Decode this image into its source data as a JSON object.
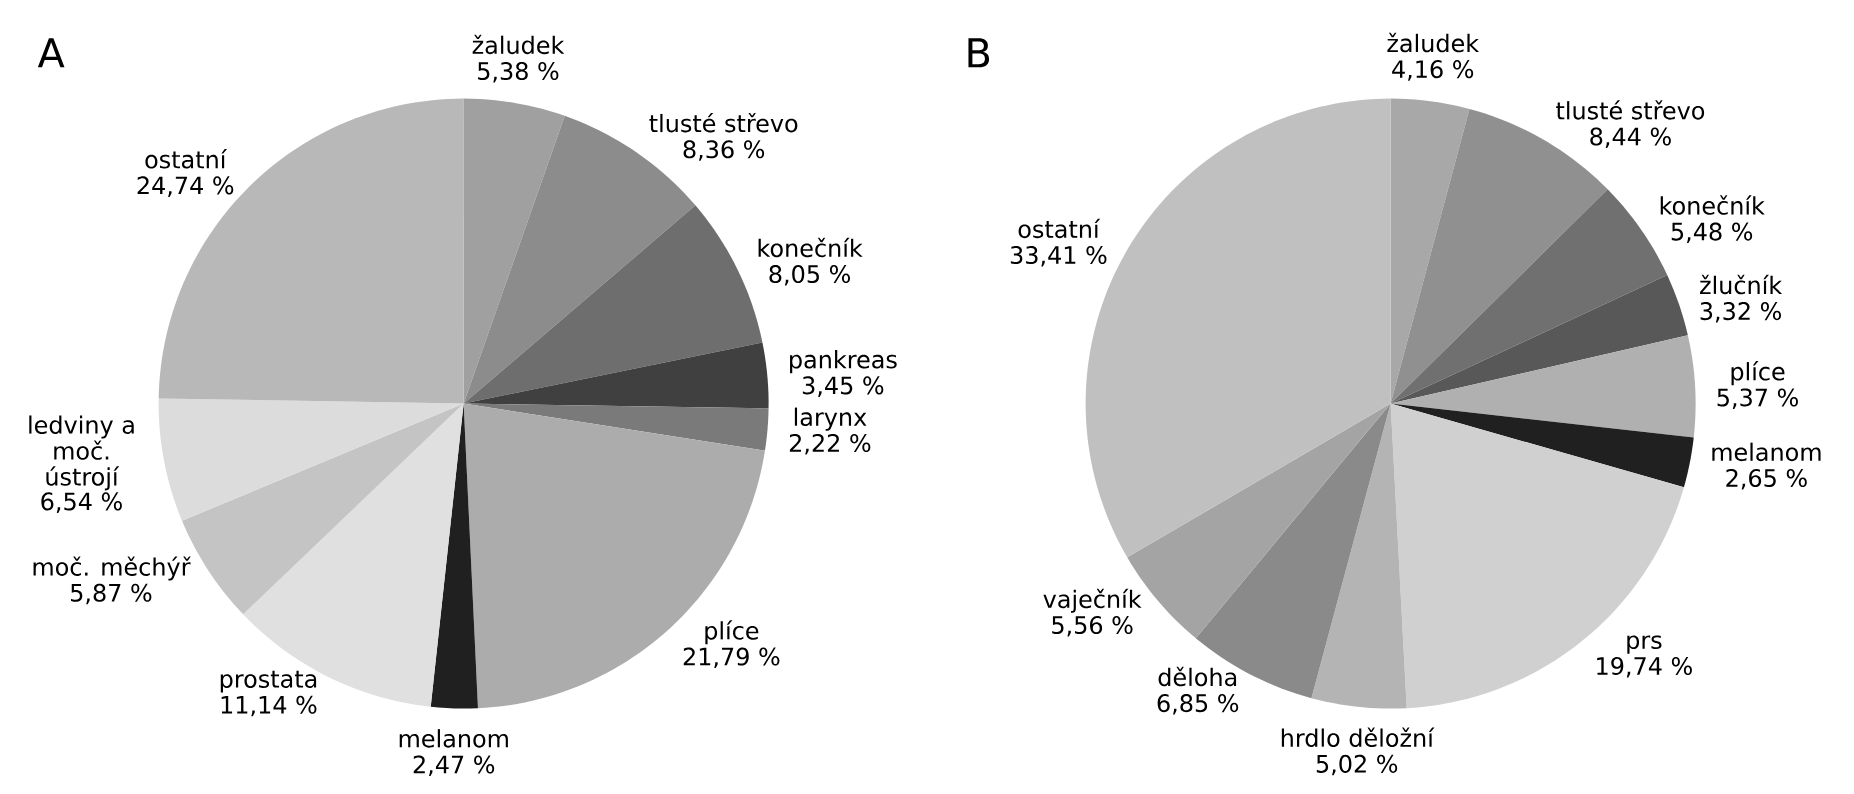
{
  "chart_data": [
    {
      "type": "pie",
      "title": "A",
      "categories": [
        "žaludek",
        "tlusté střevo",
        "konečník",
        "pankreas",
        "larynx",
        "plíce",
        "melanom",
        "prostata",
        "moč. měchýř",
        "ledviny a moč. ústrojí",
        "ostatní"
      ],
      "values": [
        5.38,
        8.36,
        8.05,
        3.45,
        2.22,
        21.79,
        2.47,
        11.14,
        5.87,
        6.54,
        24.74
      ],
      "value_labels": [
        "5,38 %",
        "8,36 %",
        "8,05 %",
        "3,45 %",
        "2,22 %",
        "21,79 %",
        "2,47 %",
        "11,14 %",
        "5,87 %",
        "6,54 %",
        "24,74 %"
      ],
      "colors": [
        "#a0a0a0",
        "#8c8c8c",
        "#6e6e6e",
        "#404040",
        "#7a7a7a",
        "#acacac",
        "#202020",
        "#e0e0e0",
        "#c4c4c4",
        "#dcdcdc",
        "#b8b8b8"
      ]
    },
    {
      "type": "pie",
      "title": "B",
      "categories": [
        "žaludek",
        "tlusté střevo",
        "konečník",
        "žlučník",
        "plíce",
        "melanom",
        "prs",
        "hrdlo děložní",
        "děloha",
        "vaječník",
        "ostatní"
      ],
      "values": [
        4.16,
        8.44,
        5.48,
        3.32,
        5.37,
        2.65,
        19.74,
        5.02,
        6.85,
        5.56,
        33.41
      ],
      "value_labels": [
        "4,16 %",
        "8,44 %",
        "5,48 %",
        "3,32 %",
        "5,37 %",
        "2,65 %",
        "19,74 %",
        "5,02 %",
        "6,85 %",
        "5,56 %",
        "33,41 %"
      ],
      "colors": [
        "#a8a8a8",
        "#909090",
        "#707070",
        "#585858",
        "#b0b0b0",
        "#202020",
        "#d0d0d0",
        "#b4b4b4",
        "#8a8a8a",
        "#a4a4a4",
        "#c0c0c0"
      ]
    }
  ]
}
